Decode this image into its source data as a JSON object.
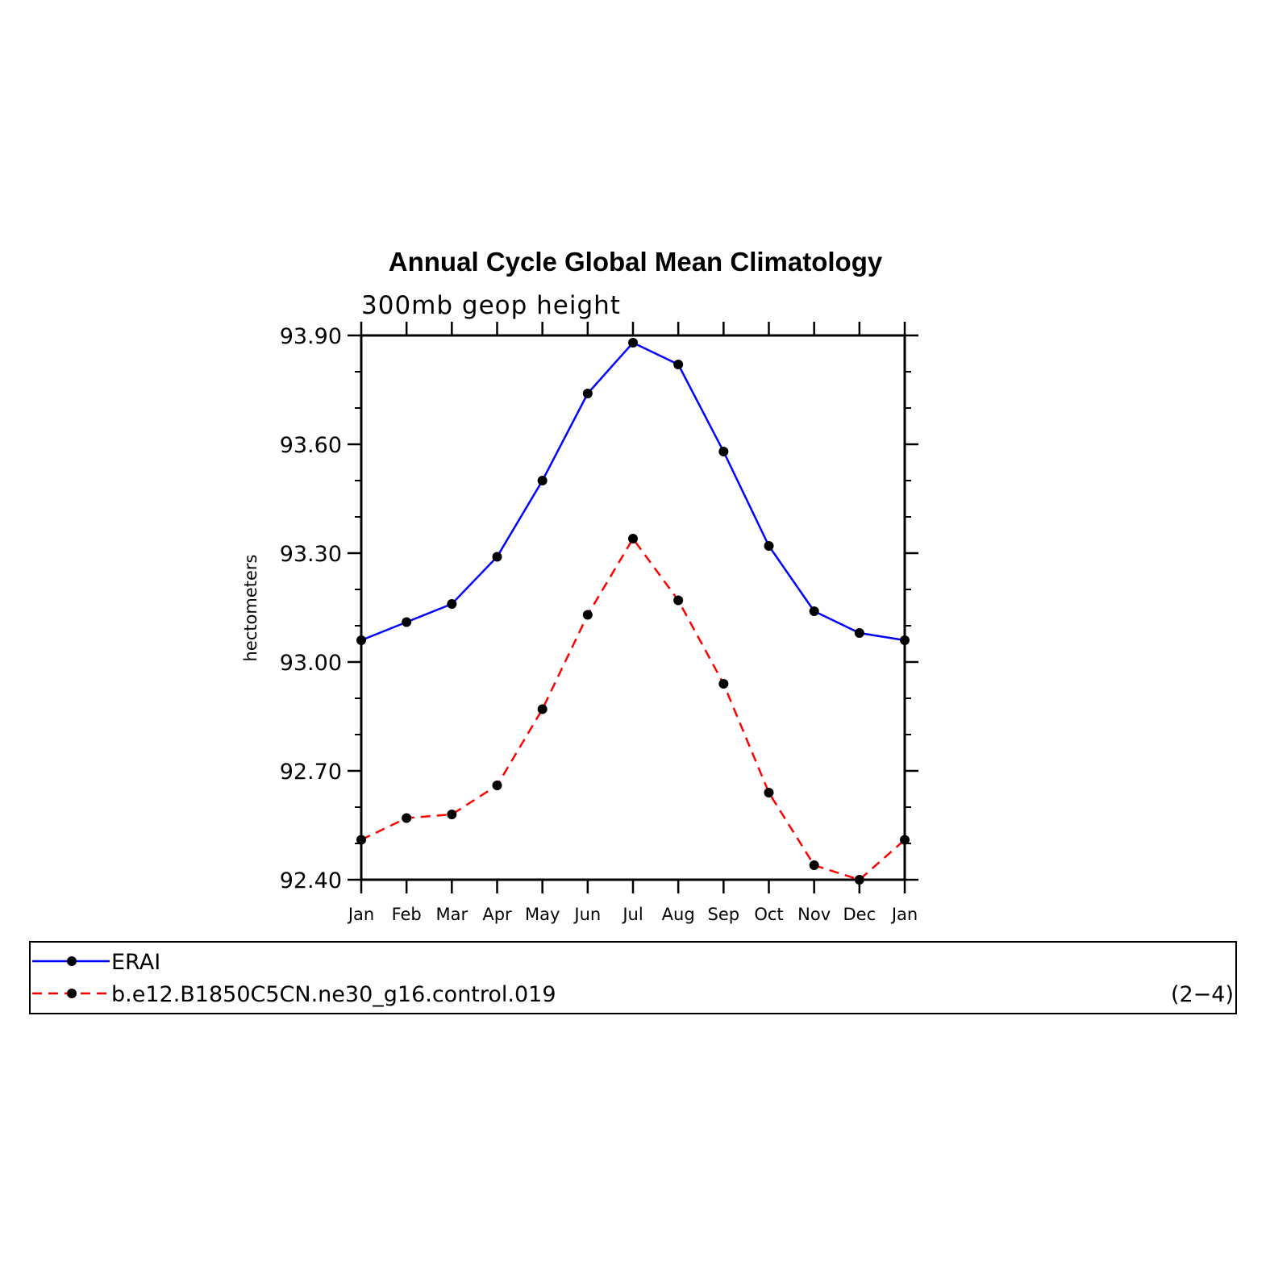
{
  "chart_data": {
    "type": "line",
    "title": "Annual Cycle Global Mean Climatology",
    "subtitle": "300mb geop height",
    "ylabel": "hectometers",
    "xlabel": "",
    "categories": [
      "Jan",
      "Feb",
      "Mar",
      "Apr",
      "May",
      "Jun",
      "Jul",
      "Aug",
      "Sep",
      "Oct",
      "Nov",
      "Dec",
      "Jan"
    ],
    "ylim": [
      92.4,
      93.9
    ],
    "yticks": [
      "93.90",
      "93.60",
      "93.30",
      "93.00",
      "92.70",
      "92.40"
    ],
    "yticks_values": [
      93.9,
      93.6,
      93.3,
      93.0,
      92.7,
      92.4
    ],
    "grid": false,
    "series": [
      {
        "name": "ERAI",
        "color": "#0000ff",
        "dash": "solid",
        "values": [
          93.06,
          93.11,
          93.16,
          93.29,
          93.5,
          93.74,
          93.88,
          93.82,
          93.58,
          93.32,
          93.14,
          93.08,
          93.06
        ]
      },
      {
        "name": "b.e12.B1850C5CN.ne30_g16.control.019",
        "color": "#ff0000",
        "dash": "dashed",
        "values": [
          92.51,
          92.57,
          92.58,
          92.66,
          92.87,
          93.13,
          93.34,
          93.17,
          92.94,
          92.64,
          92.44,
          92.4,
          92.51
        ]
      }
    ],
    "legend_position": "bottom",
    "corner_label": "(2−4)"
  }
}
